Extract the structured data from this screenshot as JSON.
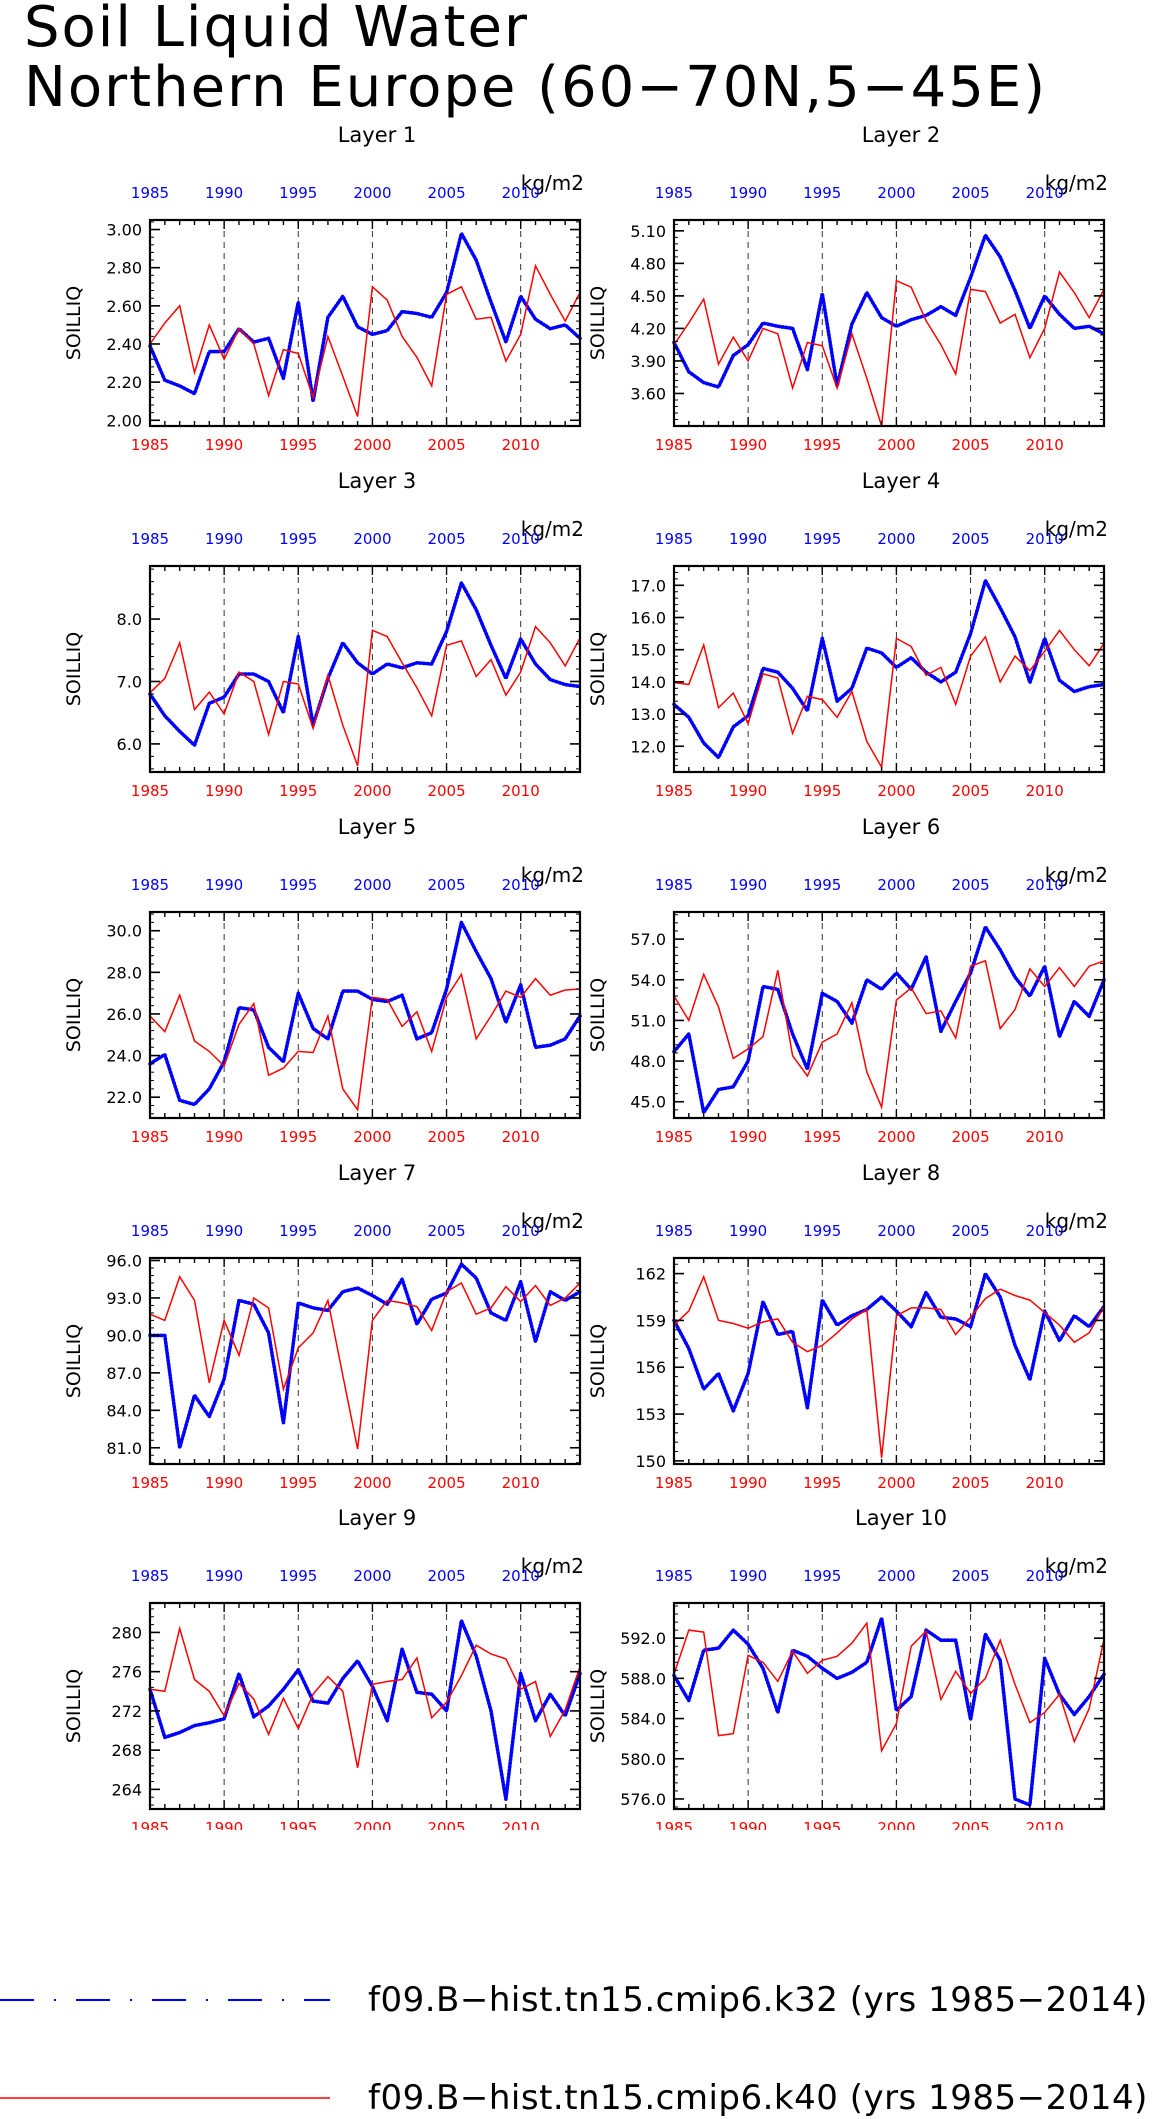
{
  "title": {
    "line1": "Soil Liquid Water",
    "line2": "Northern Europe (60−70N,5−45E)"
  },
  "units_label": "kg/m2",
  "ylabel": "SOILLIQ",
  "colors": {
    "k32": "#0000ff",
    "k40": "#ff0000",
    "axis": "#000000"
  },
  "legend": [
    {
      "label": "f09.B−hist.tn15.cmip6.k32 (yrs 1985−2014)",
      "color": "#0000ff",
      "style": "dashed-dotted"
    },
    {
      "label": "f09.B−hist.tn15.cmip6.k40 (yrs 1985−2014)",
      "color": "#ff0000",
      "style": "solid"
    }
  ],
  "chart_data": [
    {
      "type": "line",
      "title": "Layer 1",
      "ylabel": "SOILLIQ",
      "units": "kg/m2",
      "x_range": [
        1985,
        2014
      ],
      "xticks": [
        1985,
        1990,
        1995,
        2000,
        2005,
        2010
      ],
      "ylim": [
        1.97,
        3.05
      ],
      "yticks": [
        2.0,
        2.2,
        2.4,
        2.6,
        2.8,
        3.0
      ],
      "ytick_format": "2",
      "series": [
        {
          "name": "f09.B−hist.tn15.cmip6.k32",
          "values": [
            2.39,
            2.21,
            2.18,
            2.14,
            2.36,
            2.36,
            2.48,
            2.41,
            2.43,
            2.22,
            2.62,
            2.1,
            2.54,
            2.65,
            2.49,
            2.45,
            2.47,
            2.57,
            2.56,
            2.54,
            2.67,
            2.98,
            2.84,
            2.62,
            2.41,
            2.65,
            2.53,
            2.48,
            2.5,
            2.43
          ]
        },
        {
          "name": "f09.B−hist.tn15.cmip6.k40",
          "values": [
            2.4,
            2.51,
            2.6,
            2.25,
            2.5,
            2.32,
            2.48,
            2.4,
            2.13,
            2.37,
            2.35,
            2.12,
            2.44,
            2.23,
            2.02,
            2.7,
            2.63,
            2.44,
            2.33,
            2.18,
            2.66,
            2.7,
            2.53,
            2.54,
            2.31,
            2.45,
            2.81,
            2.66,
            2.52,
            2.67
          ]
        }
      ]
    },
    {
      "type": "line",
      "title": "Layer 2",
      "ylabel": "SOILLIQ",
      "units": "kg/m2",
      "x_range": [
        1985,
        2014
      ],
      "xticks": [
        1985,
        1990,
        1995,
        2000,
        2005,
        2010
      ],
      "ylim": [
        3.3,
        5.2
      ],
      "yticks": [
        3.6,
        3.9,
        4.2,
        4.5,
        4.8,
        5.1
      ],
      "ytick_format": "2",
      "series": [
        {
          "name": "f09.B−hist.tn15.cmip6.k32",
          "values": [
            4.07,
            3.8,
            3.7,
            3.66,
            3.95,
            4.05,
            4.25,
            4.22,
            4.2,
            3.82,
            4.52,
            3.67,
            4.24,
            4.53,
            4.3,
            4.22,
            4.28,
            4.32,
            4.4,
            4.32,
            4.67,
            5.06,
            4.86,
            4.55,
            4.2,
            4.5,
            4.33,
            4.2,
            4.22,
            4.15
          ]
        },
        {
          "name": "f09.B−hist.tn15.cmip6.k40",
          "values": [
            4.05,
            4.25,
            4.47,
            3.87,
            4.12,
            3.9,
            4.2,
            4.15,
            3.65,
            4.07,
            4.04,
            3.65,
            4.15,
            3.74,
            3.3,
            4.64,
            4.58,
            4.27,
            4.05,
            3.78,
            4.56,
            4.54,
            4.25,
            4.33,
            3.93,
            4.2,
            4.72,
            4.53,
            4.3,
            4.56
          ]
        }
      ]
    },
    {
      "type": "line",
      "title": "Layer 3",
      "ylabel": "SOILLIQ",
      "units": "kg/m2",
      "x_range": [
        1985,
        2014
      ],
      "xticks": [
        1985,
        1990,
        1995,
        2000,
        2005,
        2010
      ],
      "ylim": [
        5.55,
        8.85
      ],
      "yticks": [
        6.0,
        7.0,
        8.0
      ],
      "ytick_format": "1",
      "series": [
        {
          "name": "f09.B−hist.tn15.cmip6.k32",
          "values": [
            6.8,
            6.45,
            6.2,
            5.98,
            6.65,
            6.75,
            7.12,
            7.12,
            7.0,
            6.5,
            7.72,
            6.3,
            7.05,
            7.62,
            7.3,
            7.12,
            7.28,
            7.22,
            7.3,
            7.28,
            7.8,
            8.58,
            8.15,
            7.58,
            7.05,
            7.68,
            7.28,
            7.03,
            6.95,
            6.92
          ]
        },
        {
          "name": "f09.B−hist.tn15.cmip6.k40",
          "values": [
            6.82,
            7.05,
            7.62,
            6.55,
            6.83,
            6.48,
            7.15,
            7.0,
            6.15,
            7.0,
            6.96,
            6.25,
            7.1,
            6.3,
            5.65,
            7.82,
            7.72,
            7.3,
            6.9,
            6.45,
            7.58,
            7.65,
            7.08,
            7.35,
            6.78,
            7.15,
            7.88,
            7.62,
            7.25,
            7.7
          ]
        }
      ]
    },
    {
      "type": "line",
      "title": "Layer 4",
      "ylabel": "SOILLIQ",
      "units": "kg/m2",
      "x_range": [
        1985,
        2014
      ],
      "xticks": [
        1985,
        1990,
        1995,
        2000,
        2005,
        2010
      ],
      "ylim": [
        11.2,
        17.6
      ],
      "yticks": [
        12.0,
        13.0,
        14.0,
        15.0,
        16.0,
        17.0
      ],
      "ytick_format": "1",
      "series": [
        {
          "name": "f09.B−hist.tn15.cmip6.k32",
          "values": [
            13.3,
            12.9,
            12.1,
            11.65,
            12.6,
            12.95,
            14.42,
            14.3,
            13.8,
            13.1,
            15.35,
            13.4,
            13.8,
            15.05,
            14.9,
            14.45,
            14.75,
            14.3,
            14.0,
            14.3,
            15.5,
            17.15,
            16.3,
            15.4,
            13.98,
            15.35,
            14.05,
            13.7,
            13.85,
            13.92
          ]
        },
        {
          "name": "f09.B−hist.tn15.cmip6.k40",
          "values": [
            13.98,
            13.92,
            15.15,
            13.2,
            13.65,
            12.7,
            14.25,
            14.12,
            12.4,
            13.55,
            13.45,
            12.9,
            13.7,
            12.15,
            11.35,
            15.35,
            15.1,
            14.2,
            14.45,
            13.3,
            14.8,
            15.4,
            14.0,
            14.8,
            14.35,
            14.95,
            15.6,
            15.0,
            14.5,
            15.2
          ]
        }
      ]
    },
    {
      "type": "line",
      "title": "Layer 5",
      "ylabel": "SOILLIQ",
      "units": "kg/m2",
      "x_range": [
        1985,
        2014
      ],
      "xticks": [
        1985,
        1990,
        1995,
        2000,
        2005,
        2010
      ],
      "ylim": [
        21.0,
        30.9
      ],
      "yticks": [
        22.0,
        24.0,
        26.0,
        28.0,
        30.0
      ],
      "ytick_format": "1",
      "series": [
        {
          "name": "f09.B−hist.tn15.cmip6.k32",
          "values": [
            23.6,
            24.05,
            21.85,
            21.65,
            22.4,
            23.7,
            26.3,
            26.2,
            24.4,
            23.7,
            27.0,
            25.3,
            24.8,
            27.1,
            27.1,
            26.7,
            26.6,
            26.9,
            24.8,
            25.1,
            27.2,
            30.4,
            29.0,
            27.7,
            25.6,
            27.4,
            24.4,
            24.5,
            24.8,
            25.9
          ]
        },
        {
          "name": "f09.B−hist.tn15.cmip6.k40",
          "values": [
            25.9,
            25.15,
            26.9,
            24.7,
            24.2,
            23.5,
            25.5,
            26.5,
            23.05,
            23.4,
            24.2,
            24.15,
            25.9,
            22.4,
            21.4,
            26.8,
            26.7,
            25.4,
            26.1,
            24.2,
            26.8,
            27.9,
            24.8,
            25.9,
            27.1,
            26.8,
            27.7,
            26.9,
            27.15,
            27.2
          ]
        }
      ]
    },
    {
      "type": "line",
      "title": "Layer 6",
      "ylabel": "SOILLIQ",
      "units": "kg/m2",
      "x_range": [
        1985,
        2014
      ],
      "xticks": [
        1985,
        1990,
        1995,
        2000,
        2005,
        2010
      ],
      "ylim": [
        43.8,
        59.0
      ],
      "yticks": [
        45.0,
        48.0,
        51.0,
        54.0,
        57.0
      ],
      "ytick_format": "1",
      "series": [
        {
          "name": "f09.B−hist.tn15.cmip6.k32",
          "values": [
            48.7,
            50.0,
            44.2,
            45.9,
            46.1,
            48.0,
            53.5,
            53.3,
            50.0,
            47.4,
            53.0,
            52.4,
            50.8,
            54.0,
            53.3,
            54.5,
            53.3,
            55.7,
            50.2,
            52.4,
            54.5,
            57.9,
            56.2,
            54.2,
            52.8,
            55.0,
            49.8,
            52.4,
            51.3,
            54.0
          ]
        },
        {
          "name": "f09.B−hist.tn15.cmip6.k40",
          "values": [
            52.8,
            51.0,
            54.4,
            52.0,
            48.2,
            48.9,
            49.8,
            54.7,
            48.4,
            46.9,
            49.4,
            50.0,
            52.3,
            47.2,
            44.6,
            52.5,
            53.4,
            51.5,
            51.7,
            49.7,
            55.0,
            55.4,
            50.4,
            51.8,
            54.8,
            53.5,
            54.9,
            53.5,
            55.0,
            55.4
          ]
        }
      ]
    },
    {
      "type": "line",
      "title": "Layer 7",
      "ylabel": "SOILLIQ",
      "units": "kg/m2",
      "x_range": [
        1985,
        2014
      ],
      "xticks": [
        1985,
        1990,
        1995,
        2000,
        2005,
        2010
      ],
      "ylim": [
        79.7,
        96.2
      ],
      "yticks": [
        81.0,
        84.0,
        87.0,
        90.0,
        93.0,
        96.0
      ],
      "ytick_format": "1",
      "series": [
        {
          "name": "f09.B−hist.tn15.cmip6.k32",
          "values": [
            90.0,
            90.0,
            81.0,
            85.2,
            83.5,
            86.5,
            92.8,
            92.5,
            90.2,
            83.0,
            92.6,
            92.2,
            92.0,
            93.5,
            93.8,
            93.2,
            92.5,
            94.5,
            90.9,
            92.9,
            93.4,
            95.7,
            94.6,
            91.8,
            91.2,
            94.3,
            89.5,
            93.5,
            92.8,
            93.5
          ]
        },
        {
          "name": "f09.B−hist.tn15.cmip6.k40",
          "values": [
            91.7,
            91.2,
            94.7,
            92.8,
            86.2,
            91.2,
            88.4,
            93.0,
            92.2,
            85.7,
            89.0,
            90.2,
            92.8,
            86.8,
            80.9,
            91.2,
            92.8,
            92.6,
            92.3,
            90.4,
            93.5,
            94.2,
            91.7,
            92.2,
            93.9,
            92.7,
            94.0,
            92.4,
            93.0,
            94.2
          ]
        }
      ]
    },
    {
      "type": "line",
      "title": "Layer 8",
      "ylabel": "SOILLIQ",
      "units": "kg/m2",
      "x_range": [
        1985,
        2014
      ],
      "xticks": [
        1985,
        1990,
        1995,
        2000,
        2005,
        2010
      ],
      "ylim": [
        149.8,
        163.0
      ],
      "yticks": [
        150,
        153,
        156,
        159,
        162
      ],
      "ytick_format": "0",
      "series": [
        {
          "name": "f09.B−hist.tn15.cmip6.k32",
          "values": [
            159.0,
            157.2,
            154.6,
            155.6,
            153.2,
            155.6,
            160.2,
            158.1,
            158.3,
            153.4,
            160.3,
            158.7,
            159.3,
            159.7,
            160.5,
            159.6,
            158.6,
            160.8,
            159.2,
            159.1,
            158.6,
            162.0,
            160.5,
            157.4,
            155.2,
            159.6,
            157.7,
            159.3,
            158.6,
            159.9
          ]
        },
        {
          "name": "f09.B−hist.tn15.cmip6.k40",
          "values": [
            158.7,
            159.6,
            161.8,
            159.0,
            158.8,
            158.5,
            158.9,
            159.1,
            157.6,
            157.0,
            157.4,
            158.2,
            159.1,
            159.7,
            150.2,
            159.3,
            159.8,
            159.8,
            159.7,
            158.1,
            159.2,
            160.4,
            161.0,
            160.6,
            160.3,
            159.5,
            158.7,
            157.6,
            158.2,
            159.9
          ]
        }
      ]
    },
    {
      "type": "line",
      "title": "Layer 9",
      "ylabel": "SOILLIQ",
      "units": "kg/m2",
      "x_range": [
        1985,
        2014
      ],
      "xticks": [
        1985,
        1990,
        1995,
        2000,
        2005,
        2010
      ],
      "ylim": [
        262.0,
        283.0
      ],
      "yticks": [
        264,
        268,
        272,
        276,
        280
      ],
      "ytick_format": "0",
      "series": [
        {
          "name": "f09.B−hist.tn15.cmip6.k32",
          "values": [
            274.2,
            269.3,
            269.8,
            270.5,
            270.8,
            271.2,
            275.8,
            271.4,
            272.5,
            274.2,
            276.2,
            273.0,
            272.8,
            275.3,
            277.1,
            274.5,
            271.0,
            278.3,
            273.9,
            273.7,
            272.0,
            281.2,
            277.6,
            272.0,
            263.0,
            275.8,
            271.0,
            273.7,
            271.5,
            275.8
          ]
        },
        {
          "name": "f09.B−hist.tn15.cmip6.k40",
          "values": [
            274.2,
            274.0,
            280.4,
            275.2,
            274.0,
            271.5,
            274.8,
            273.2,
            269.6,
            273.3,
            270.2,
            273.7,
            275.5,
            274.0,
            266.2,
            274.7,
            275.0,
            275.2,
            277.4,
            271.3,
            272.9,
            275.6,
            278.7,
            277.8,
            277.3,
            274.2,
            275.0,
            269.4,
            272.1,
            276.5
          ]
        }
      ]
    },
    {
      "type": "line",
      "title": "Layer 10",
      "ylabel": "SOILLIQ",
      "units": "kg/m2",
      "x_range": [
        1985,
        2014
      ],
      "xticks": [
        1985,
        1990,
        1995,
        2000,
        2005,
        2010
      ],
      "ylim": [
        575.0,
        595.5
      ],
      "yticks": [
        576.0,
        580.0,
        584.0,
        588.0,
        592.0
      ],
      "ytick_format": "1",
      "series": [
        {
          "name": "f09.B−hist.tn15.cmip6.k32",
          "values": [
            588.3,
            585.8,
            590.8,
            591.0,
            592.8,
            591.4,
            589.0,
            584.6,
            590.8,
            590.2,
            589.0,
            588.0,
            588.6,
            589.6,
            594.0,
            584.8,
            586.2,
            592.8,
            591.8,
            591.8,
            583.9,
            592.4,
            589.8,
            576.0,
            575.4,
            590.0,
            586.4,
            584.4,
            586.2,
            588.4
          ]
        },
        {
          "name": "f09.B−hist.tn15.cmip6.k40",
          "values": [
            588.4,
            592.8,
            592.6,
            582.3,
            582.5,
            590.3,
            589.6,
            587.7,
            590.7,
            588.5,
            589.8,
            590.2,
            591.5,
            593.5,
            580.8,
            583.5,
            591.2,
            592.7,
            585.9,
            588.7,
            586.5,
            588.0,
            591.8,
            587.4,
            583.6,
            584.6,
            586.4,
            581.7,
            585.0,
            591.9
          ]
        }
      ]
    }
  ]
}
